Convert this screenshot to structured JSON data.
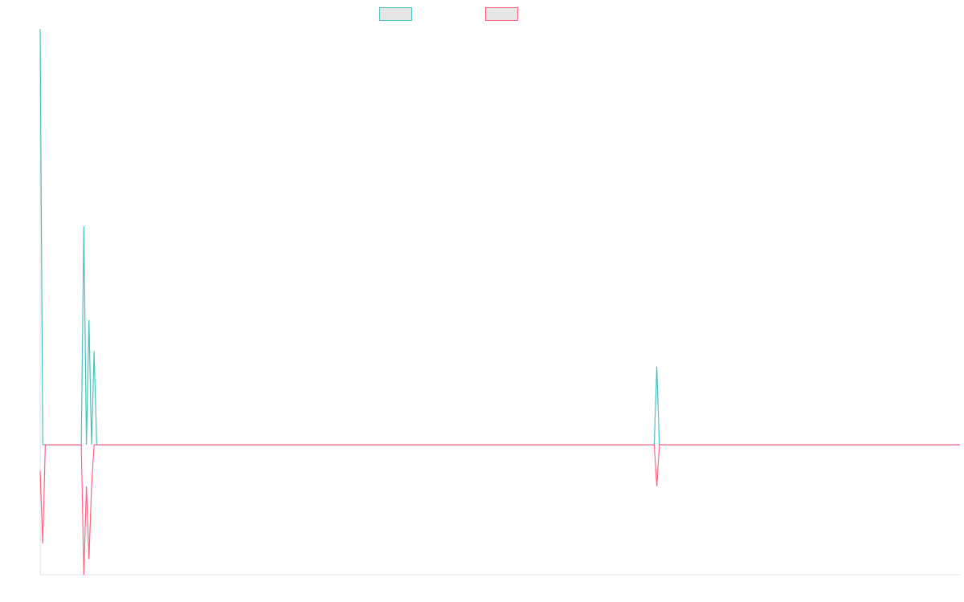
{
  "chart_data": {
    "type": "line",
    "title": "",
    "xlabel": "",
    "ylabel": "",
    "legend_position": "top",
    "grid": false,
    "xlim": [
      0,
      358
    ],
    "ylim": [
      -12.5,
      40
    ],
    "x": [
      0,
      1,
      2,
      16,
      17,
      18,
      19,
      20,
      21,
      22,
      239,
      240,
      241,
      358
    ],
    "series": [
      {
        "name": "",
        "color": "#4bc0c0",
        "values": [
          40,
          0,
          0,
          0,
          21,
          0,
          12,
          0,
          9,
          0,
          0,
          7.5,
          0,
          0
        ]
      },
      {
        "name": "",
        "color": "#ff6384",
        "values": [
          -2.5,
          -9.5,
          0,
          0,
          -12.5,
          -4,
          -11,
          -4,
          0,
          0,
          0,
          -4,
          0,
          0
        ]
      }
    ]
  }
}
